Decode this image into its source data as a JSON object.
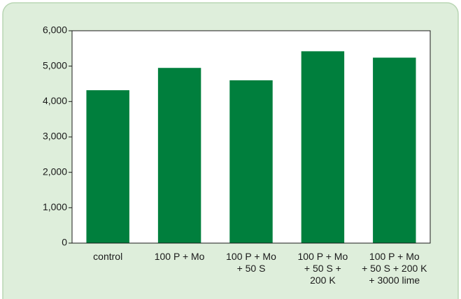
{
  "chart_data": {
    "type": "bar",
    "categories": [
      [
        "control"
      ],
      [
        "100 P + Mo"
      ],
      [
        "100 P + Mo",
        "+ 50 S"
      ],
      [
        "100 P + Mo",
        "+ 50 S +",
        "200 K"
      ],
      [
        "100 P + Mo",
        "+ 50 S + 200 K",
        "+ 3000 lime"
      ]
    ],
    "values": [
      4320,
      4950,
      4600,
      5420,
      5240
    ],
    "color": "#007f3d",
    "ylim": [
      0,
      6000
    ],
    "yticks": [
      0,
      {
        "value": 1000,
        "label": "1,000"
      },
      {
        "value": 2000,
        "label": "2,000"
      },
      {
        "value": 3000,
        "label": "3,000"
      },
      {
        "value": 4000,
        "label": "4,000"
      },
      {
        "value": 5000,
        "label": "5,000"
      },
      {
        "value": 6000,
        "label": "6,000"
      }
    ],
    "grid": false
  }
}
